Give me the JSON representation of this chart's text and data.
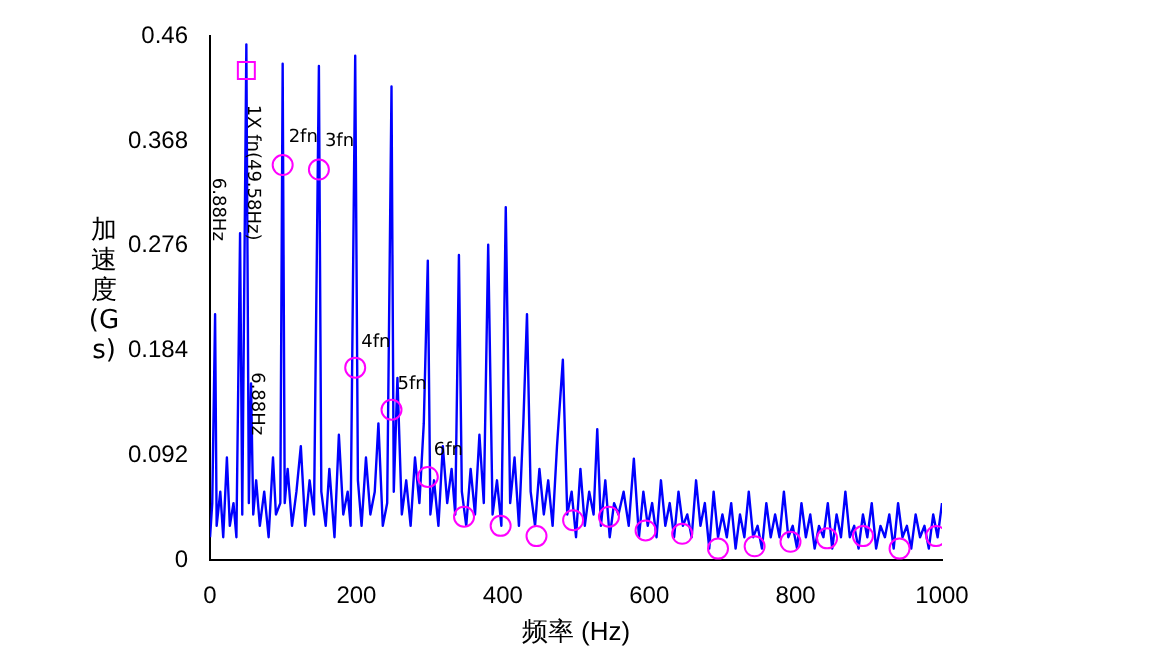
{
  "chart_data": {
    "type": "line",
    "xlabel": "频率 (Hz)",
    "ylabel": "加速度(Gs)",
    "xlim": [
      0,
      1000
    ],
    "ylim": [
      0,
      0.46
    ],
    "xticks": [
      0,
      200,
      400,
      600,
      800,
      {
        "value": 1000,
        "label": "1000"
      }
    ],
    "yticks": [
      0,
      0.092,
      0.184,
      0.276,
      0.368,
      0.46
    ],
    "grid": false,
    "legend": false,
    "series": [
      {
        "color": "#0000ff",
        "marker": "none",
        "x": [
          0,
          3,
          6.88,
          9,
          14,
          18,
          23,
          27,
          32,
          36,
          41,
          44,
          49.58,
          53,
          56,
          59,
          63,
          68,
          74,
          80,
          86,
          90,
          96,
          99.2,
          102,
          106,
          112,
          118,
          124,
          130,
          136,
          142,
          148.7,
          152,
          158,
          163,
          170,
          176,
          182,
          188,
          192,
          198.3,
          202,
          207,
          213,
          219,
          225,
          230,
          236,
          242,
          247.9,
          251,
          256,
          262,
          268,
          274,
          280,
          286,
          292,
          297.5,
          301,
          306,
          312,
          318,
          324,
          330,
          335,
          340,
          344,
          350,
          356,
          362,
          368,
          374,
          380,
          386,
          392,
          398,
          404,
          410,
          416,
          422,
          428,
          433,
          438,
          444,
          450,
          456,
          462,
          468,
          474,
          482,
          488,
          494,
          500,
          506,
          512,
          518,
          524,
          529,
          534,
          540,
          546,
          552,
          558,
          565,
          572,
          579,
          586,
          592,
          598,
          604,
          610,
          616,
          622,
          628,
          634,
          640,
          646,
          652,
          658,
          664,
          670,
          676,
          682,
          688,
          694,
          700,
          706,
          712,
          718,
          724,
          730,
          736,
          742,
          748,
          754,
          760,
          766,
          772,
          778,
          784,
          790,
          796,
          802,
          808,
          814,
          820,
          826,
          832,
          838,
          844,
          850,
          856,
          862,
          868,
          874,
          880,
          886,
          892,
          898,
          904,
          910,
          916,
          922,
          928,
          934,
          940,
          946,
          952,
          958,
          964,
          970,
          976,
          982,
          988,
          994,
          1000
        ],
        "values": [
          0.02,
          0.05,
          0.216,
          0.03,
          0.06,
          0.02,
          0.09,
          0.03,
          0.05,
          0.02,
          0.287,
          0.04,
          0.453,
          0.05,
          0.155,
          0.04,
          0.07,
          0.03,
          0.06,
          0.02,
          0.09,
          0.04,
          0.05,
          0.436,
          0.05,
          0.08,
          0.03,
          0.06,
          0.1,
          0.03,
          0.07,
          0.04,
          0.434,
          0.06,
          0.03,
          0.08,
          0.02,
          0.11,
          0.04,
          0.06,
          0.03,
          0.443,
          0.07,
          0.03,
          0.09,
          0.04,
          0.06,
          0.12,
          0.03,
          0.05,
          0.416,
          0.06,
          0.16,
          0.04,
          0.07,
          0.03,
          0.09,
          0.05,
          0.12,
          0.263,
          0.04,
          0.07,
          0.03,
          0.1,
          0.05,
          0.08,
          0.04,
          0.268,
          0.06,
          0.03,
          0.08,
          0.04,
          0.11,
          0.05,
          0.277,
          0.04,
          0.07,
          0.03,
          0.31,
          0.05,
          0.09,
          0.03,
          0.12,
          0.216,
          0.06,
          0.03,
          0.08,
          0.04,
          0.07,
          0.03,
          0.1,
          0.176,
          0.04,
          0.06,
          0.02,
          0.08,
          0.03,
          0.06,
          0.04,
          0.115,
          0.03,
          0.07,
          0.02,
          0.05,
          0.04,
          0.06,
          0.03,
          0.089,
          0.02,
          0.06,
          0.03,
          0.05,
          0.02,
          0.07,
          0.03,
          0.05,
          0.02,
          0.06,
          0.03,
          0.04,
          0.02,
          0.07,
          0.03,
          0.05,
          0.01,
          0.06,
          0.02,
          0.04,
          0.02,
          0.05,
          0.01,
          0.04,
          0.02,
          0.06,
          0.02,
          0.03,
          0.01,
          0.05,
          0.02,
          0.04,
          0.02,
          0.06,
          0.02,
          0.03,
          0.01,
          0.05,
          0.02,
          0.04,
          0.01,
          0.03,
          0.02,
          0.05,
          0.01,
          0.04,
          0.02,
          0.06,
          0.02,
          0.03,
          0.01,
          0.04,
          0.02,
          0.05,
          0.01,
          0.03,
          0.02,
          0.04,
          0.01,
          0.05,
          0.02,
          0.03,
          0.01,
          0.04,
          0.02,
          0.03,
          0.01,
          0.04,
          0.02,
          0.05
        ]
      },
      {
        "type": "scatter",
        "color": "#ff00ff",
        "marker": "square",
        "x": [
          49.58
        ],
        "values": [
          0.43
        ]
      },
      {
        "type": "scatter",
        "color": "#ff00ff",
        "marker": "circle",
        "x": [
          99.2,
          148.7,
          198.3,
          247.9,
          297.5,
          347,
          397,
          446,
          496,
          545,
          595,
          645,
          694,
          744,
          793,
          843,
          892,
          942,
          992
        ],
        "values": [
          0.347,
          0.343,
          0.169,
          0.132,
          0.073,
          0.038,
          0.03,
          0.021,
          0.035,
          0.038,
          0.026,
          0.023,
          0.01,
          0.012,
          0.016,
          0.019,
          0.021,
          0.01,
          0.021
        ]
      }
    ],
    "annotations": [
      {
        "text": "1X fn(49.58Hz)",
        "x": 49.58,
        "y": 0.4
      },
      {
        "text": "2fn",
        "x": 99.2,
        "y": 0.36
      },
      {
        "text": "3fn",
        "x": 148.7,
        "y": 0.356
      },
      {
        "text": "4fn",
        "x": 198.3,
        "y": 0.18
      },
      {
        "text": "5fn",
        "x": 247.9,
        "y": 0.143
      },
      {
        "text": "6fn",
        "x": 297.5,
        "y": 0.085
      },
      "6.88Hz",
      {
        "text": "6.88Hz",
        "x": 56,
        "y": 0.165
      }
    ]
  }
}
